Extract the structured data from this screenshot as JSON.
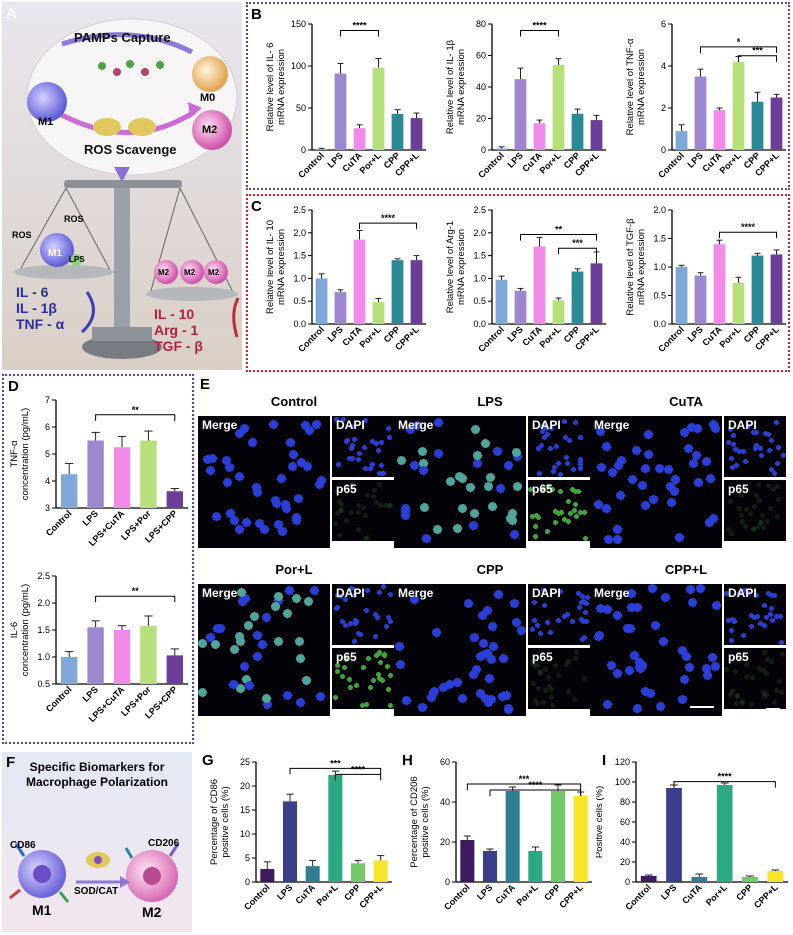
{
  "panel_labels": {
    "A": "A",
    "B": "B",
    "C": "C",
    "D": "D",
    "E": "E",
    "F": "F",
    "G": "G",
    "H": "H",
    "I": "I"
  },
  "schematic_A": {
    "top_label": "PAMPs Capture",
    "bottom_label": "ROS Scavenge",
    "m0": "M0",
    "m1": "M1",
    "m2": "M2",
    "pro": [
      "IL - 6",
      "IL - 1β",
      "TNF - α"
    ],
    "anti": [
      "IL - 10",
      "Arg - 1",
      "TGF - β"
    ],
    "pan_tags": [
      "ROS",
      "ROS",
      "LPS",
      "M1",
      "M2",
      "M2",
      "M2"
    ]
  },
  "schematic_F": {
    "title_line1": "Specific Biomarkers for",
    "title_line2": "Macrophage Polarization",
    "cd86": "CD86",
    "cd206": "CD206",
    "enzyme": "SOD/CAT",
    "m1": "M1",
    "m2": "M2"
  },
  "micrograph_E": {
    "titles": [
      "Control",
      "LPS",
      "CuTA",
      "Por+L",
      "CPP",
      "CPP+L"
    ],
    "merge": "Merge",
    "dapi": "DAPI",
    "p65": "p65"
  },
  "colors": {
    "g6": [
      "#7fa7d8",
      "#9d88cf",
      "#f08be8",
      "#b6e07a",
      "#2a8a96",
      "#6b3f98"
    ],
    "g5": [
      "#7fa7d8",
      "#9d88cf",
      "#f08be8",
      "#b6e07a",
      "#6b3f98"
    ],
    "g6b": [
      "#3d1a5e",
      "#3a3f8c",
      "#2f7f93",
      "#2aa982",
      "#74c96b",
      "#f8e52a"
    ]
  },
  "chart_data": [
    {
      "id": "B1",
      "type": "bar",
      "categories": [
        "Control",
        "LPS",
        "CuTA",
        "Por+L",
        "CPP",
        "CPP+L"
      ],
      "values": [
        1,
        91,
        26,
        98,
        43,
        38
      ],
      "errors": [
        1,
        12,
        4,
        11,
        5,
        6
      ],
      "ylabel": "Relative level of IL- 6 mRNA expression",
      "yticks": [
        0,
        50,
        100,
        150
      ],
      "ylim": [
        0,
        150
      ],
      "sig": [
        {
          "label": "****"
        }
      ]
    },
    {
      "id": "B2",
      "type": "bar",
      "categories": [
        "Control",
        "LPS",
        "CuTA",
        "Por+L",
        "CPP",
        "CPP+L"
      ],
      "values": [
        1,
        45,
        17,
        54,
        23,
        19
      ],
      "errors": [
        1,
        7,
        2,
        4,
        3,
        3
      ],
      "ylabel": "Relative level of IL- 1β mRNA expression",
      "yticks": [
        0,
        20,
        40,
        60,
        80
      ],
      "ylim": [
        0,
        80
      ],
      "sig": [
        {
          "label": "****"
        }
      ]
    },
    {
      "id": "B3",
      "type": "bar",
      "categories": [
        "Control",
        "LPS",
        "CuTA",
        "Por+L",
        "CPP",
        "CPP+L"
      ],
      "values": [
        0.9,
        3.5,
        1.9,
        4.2,
        2.3,
        2.5
      ],
      "errors": [
        0.3,
        0.35,
        0.1,
        0.25,
        0.45,
        0.15
      ],
      "ylabel": "Relative level of TNF-α mRNA expression",
      "yticks": [
        0,
        2,
        4,
        6
      ],
      "ylim": [
        0,
        6
      ],
      "sig": [
        {
          "label": "*"
        },
        {
          "label": "***"
        }
      ]
    },
    {
      "id": "C1",
      "type": "bar",
      "categories": [
        "Control",
        "LPS",
        "CuTA",
        "Por+L",
        "CPP",
        "CPP+L"
      ],
      "values": [
        1.0,
        0.7,
        1.85,
        0.48,
        1.4,
        1.4
      ],
      "errors": [
        0.1,
        0.05,
        0.2,
        0.08,
        0.03,
        0.1
      ],
      "ylabel": "Relative level of IL- 10 mRNA expression",
      "yticks": [
        0.0,
        0.5,
        1.0,
        1.5,
        2.0,
        2.5
      ],
      "ylim": [
        0,
        2.5
      ],
      "sig": [
        {
          "label": "****"
        }
      ]
    },
    {
      "id": "C2",
      "type": "bar",
      "categories": [
        "Control",
        "LPS",
        "CuTA",
        "Por+L",
        "CPP",
        "CPP+L"
      ],
      "values": [
        0.97,
        0.73,
        1.7,
        0.52,
        1.15,
        1.33
      ],
      "errors": [
        0.08,
        0.05,
        0.2,
        0.05,
        0.06,
        0.25
      ],
      "ylabel": "Relative level of Arg-1 mRNA expression",
      "yticks": [
        0.0,
        0.5,
        1.0,
        1.5,
        2.0,
        2.5
      ],
      "ylim": [
        0,
        2.5
      ],
      "sig": [
        {
          "label": "**"
        },
        {
          "label": "***"
        }
      ]
    },
    {
      "id": "C3",
      "type": "bar",
      "categories": [
        "Control",
        "LPS",
        "CuTA",
        "Por+L",
        "CPP",
        "CPP+L"
      ],
      "values": [
        1.0,
        0.85,
        1.4,
        0.72,
        1.2,
        1.22
      ],
      "errors": [
        0.03,
        0.05,
        0.07,
        0.1,
        0.04,
        0.08
      ],
      "ylabel": "Relative level of TGF-β mRNA expression",
      "yticks": [
        0.0,
        0.5,
        1.0,
        1.5,
        2.0
      ],
      "ylim": [
        0,
        2.0
      ],
      "sig": [
        {
          "label": "****"
        }
      ]
    },
    {
      "id": "D1",
      "type": "bar",
      "categories": [
        "Control",
        "LPS",
        "LPS+CuTA",
        "LPS+Por",
        "LPS+CPP"
      ],
      "values": [
        4.25,
        5.5,
        5.25,
        5.5,
        3.62
      ],
      "errors": [
        0.4,
        0.3,
        0.4,
        0.35,
        0.1
      ],
      "ylabel": "TNF-α concentration (pg/mL)",
      "yticks": [
        3,
        4,
        5,
        6,
        7
      ],
      "ylim": [
        3,
        7
      ],
      "sig": [
        {
          "label": "**"
        }
      ]
    },
    {
      "id": "D2",
      "type": "bar",
      "categories": [
        "Control",
        "LPS",
        "LPS+CuTA",
        "LPS+Por",
        "LPS+CPP"
      ],
      "values": [
        1.0,
        1.55,
        1.5,
        1.58,
        1.03
      ],
      "errors": [
        0.1,
        0.12,
        0.08,
        0.18,
        0.12
      ],
      "ylabel": "IL-6 concentration (pg/mL)",
      "yticks": [
        0.5,
        1.0,
        1.5,
        2.0,
        2.5
      ],
      "ylim": [
        0.5,
        2.5
      ],
      "sig": [
        {
          "label": "**"
        }
      ]
    },
    {
      "id": "G",
      "type": "bar",
      "categories": [
        "Control",
        "LPS",
        "CuTA",
        "Por+L",
        "CPP",
        "CPP+L"
      ],
      "values": [
        2.7,
        16.8,
        3.3,
        22.3,
        3.9,
        4.5
      ],
      "errors": [
        1.5,
        1.5,
        1.2,
        0.8,
        0.6,
        1.0
      ],
      "ylabel": "Percentage of CD86 positive cells (%)",
      "yticks": [
        0,
        5,
        10,
        15,
        20,
        25
      ],
      "ylim": [
        0,
        25
      ],
      "sig": [
        {
          "label": "***"
        },
        {
          "label": "****"
        }
      ]
    },
    {
      "id": "H",
      "type": "bar",
      "categories": [
        "Control",
        "LPS",
        "CuTA",
        "Por+L",
        "CPP",
        "CPP+L"
      ],
      "values": [
        21,
        15.5,
        45.5,
        15.5,
        45.5,
        43
      ],
      "errors": [
        2,
        1,
        2,
        2,
        3,
        2
      ],
      "ylabel": "Percentage of CD206 positive cells (%)",
      "yticks": [
        0,
        20,
        40,
        60
      ],
      "ylim": [
        0,
        60
      ],
      "sig": [
        {
          "label": "***"
        },
        {
          "label": "****"
        }
      ]
    },
    {
      "id": "I",
      "type": "bar",
      "categories": [
        "Control",
        "LPS",
        "CuTA",
        "Por+L",
        "CPP",
        "CPP+L"
      ],
      "values": [
        6,
        94,
        5,
        97,
        5,
        11
      ],
      "errors": [
        1,
        3,
        3,
        2,
        1,
        1
      ],
      "ylabel": "Positive cells (%)",
      "yticks": [
        0,
        20,
        40,
        60,
        80,
        100,
        120
      ],
      "ylim": [
        0,
        120
      ],
      "sig": [
        {
          "label": "****"
        }
      ]
    }
  ]
}
